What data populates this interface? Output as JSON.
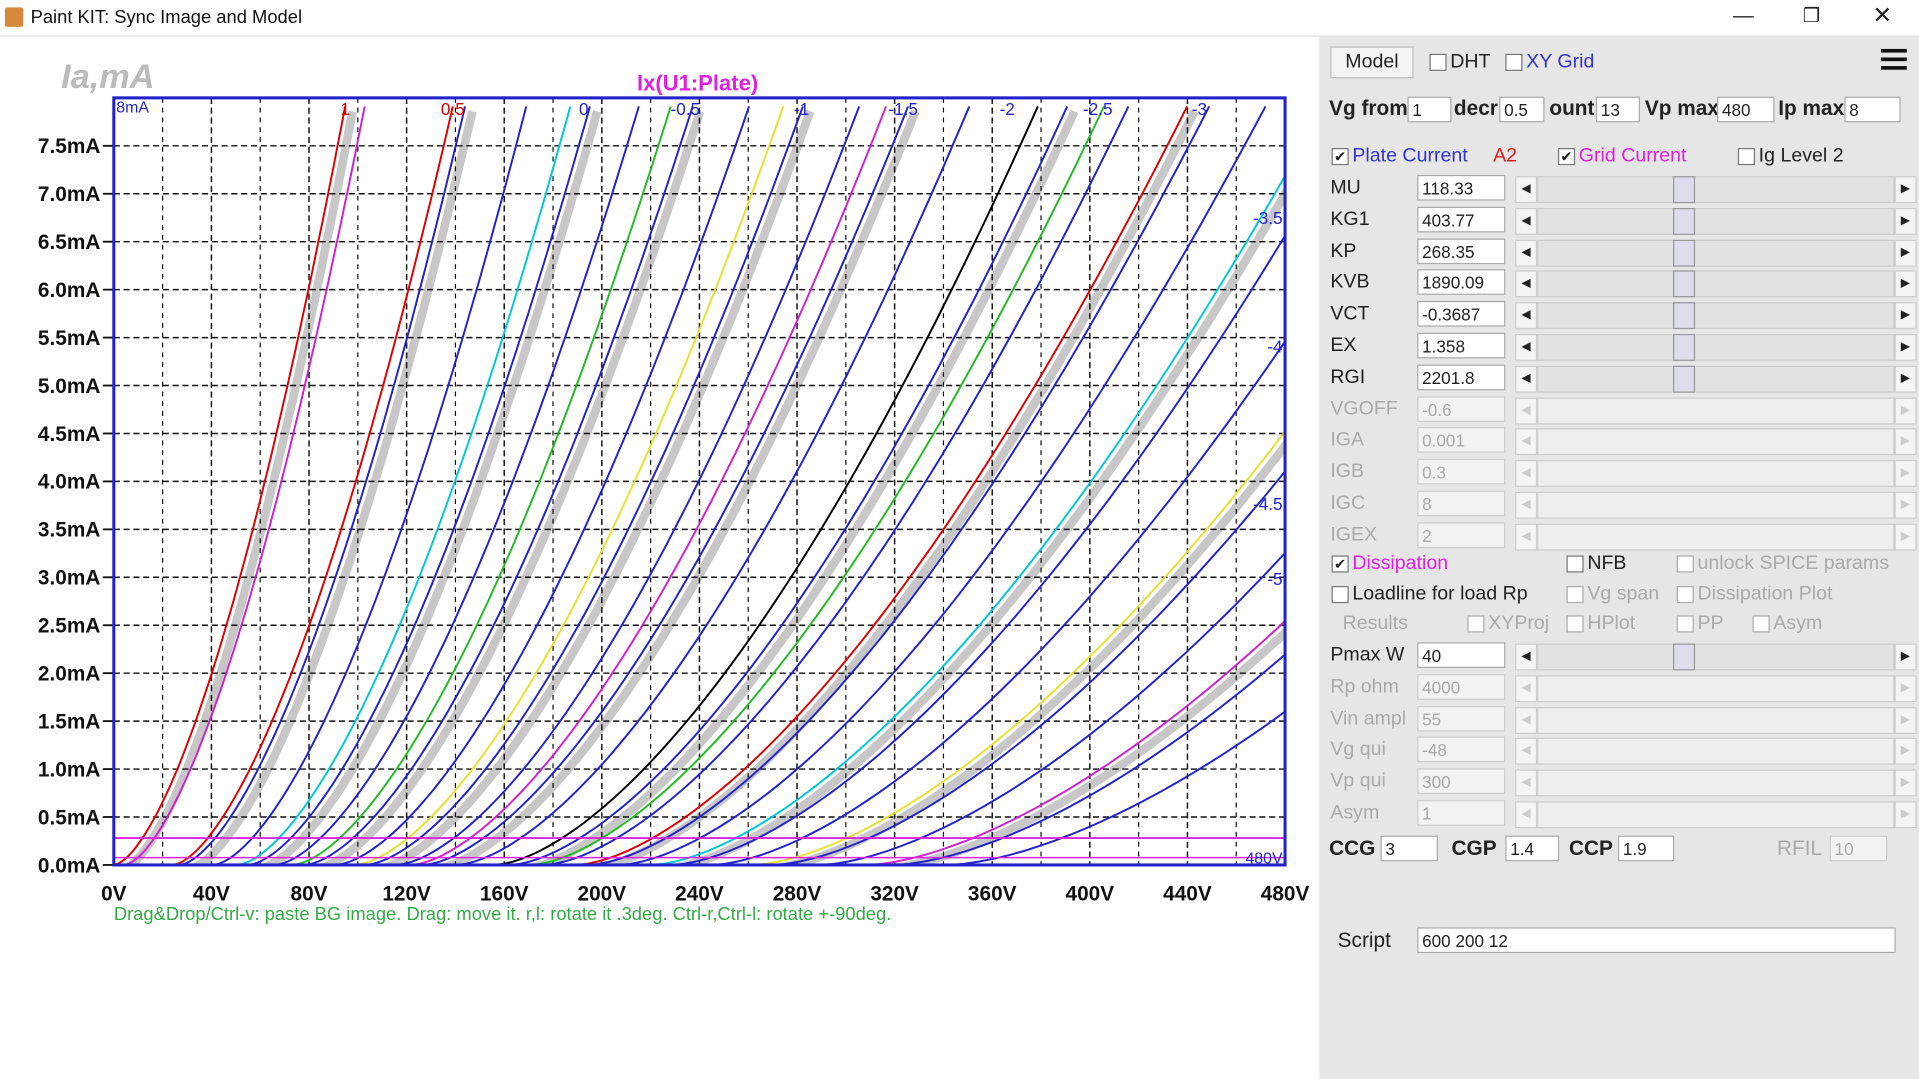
{
  "window": {
    "title": "Paint KIT: Sync Image and Model"
  },
  "plot": {
    "title": "Ix(U1:Plate)",
    "bg_label": "Ia,mA",
    "y_top_label": "8mA",
    "x_end_label": "480V",
    "yticks": [
      "0.0mA",
      "0.5mA",
      "1.0mA",
      "1.5mA",
      "2.0mA",
      "2.5mA",
      "3.0mA",
      "3.5mA",
      "4.0mA",
      "4.5mA",
      "5.0mA",
      "5.5mA",
      "6.0mA",
      "6.5mA",
      "7.0mA",
      "7.5mA"
    ],
    "xticks": [
      "0V",
      "40V",
      "80V",
      "120V",
      "160V",
      "200V",
      "240V",
      "280V",
      "320V",
      "360V",
      "400V",
      "440V",
      "480V"
    ],
    "curve_labels": [
      "1",
      "0.5",
      "0",
      "-0.5",
      "-1",
      "-1.5",
      "-2",
      "-2.5",
      "-3"
    ],
    "right_labels": [
      "-3.5",
      "-4",
      "-4.5",
      "-5"
    ],
    "status": "Drag&Drop/Ctrl-v: paste BG image. Drag: move it. r,l: rotate it .3deg. Ctrl-r,Ctrl-l: rotate +-90deg."
  },
  "panel": {
    "model_button": "Model",
    "top_checks": [
      {
        "label": "DHT",
        "checked": false
      },
      {
        "label": "XY Grid",
        "checked": false
      }
    ],
    "range_fields": [
      {
        "label": "Vg from",
        "value": 1
      },
      {
        "label": "decr",
        "value": 0.5
      },
      {
        "label": "ount",
        "value": 13
      },
      {
        "label": "Vp max",
        "value": 480
      },
      {
        "label": "Ip max",
        "value": 8
      }
    ],
    "curve_checks": [
      {
        "label": "Plate Current",
        "checked": true
      },
      {
        "label": "Grid Current",
        "checked": true
      },
      {
        "label": "Ig Level 2",
        "checked": false
      }
    ],
    "model_name": "A2",
    "params": [
      {
        "name": "MU",
        "value": 118.33,
        "enabled": true
      },
      {
        "name": "KG1",
        "value": 403.77,
        "enabled": true
      },
      {
        "name": "KP",
        "value": 268.35,
        "enabled": true
      },
      {
        "name": "KVB",
        "value": 1890.09,
        "enabled": true
      },
      {
        "name": "VCT",
        "value": -0.3687,
        "enabled": true
      },
      {
        "name": "EX",
        "value": 1.358,
        "enabled": true
      },
      {
        "name": "RGI",
        "value": 2201.8,
        "enabled": true
      },
      {
        "name": "VGOFF",
        "value": -0.6,
        "enabled": false
      },
      {
        "name": "IGA",
        "value": 0.001,
        "enabled": false
      },
      {
        "name": "IGB",
        "value": 0.3,
        "enabled": false
      },
      {
        "name": "IGC",
        "value": 8,
        "enabled": false
      },
      {
        "name": "IGEX",
        "value": 2,
        "enabled": false
      }
    ],
    "options": [
      {
        "label": "Dissipation",
        "checked": true,
        "enabled": true
      },
      {
        "label": "NFB",
        "checked": false,
        "enabled": true
      },
      {
        "label": "unlock SPICE params",
        "checked": false,
        "enabled": false
      },
      {
        "label": "Loadline for load Rp",
        "checked": false,
        "enabled": true
      },
      {
        "label": "Vg span",
        "checked": false,
        "enabled": false
      },
      {
        "label": "Dissipation Plot",
        "checked": false,
        "enabled": false
      },
      {
        "label": "XYProj",
        "checked": false,
        "enabled": false
      },
      {
        "label": "HPlot",
        "checked": false,
        "enabled": false
      },
      {
        "label": "PP",
        "checked": false,
        "enabled": false
      },
      {
        "label": "Asym",
        "checked": false,
        "enabled": false
      }
    ],
    "results_label": "Results",
    "load_params": [
      {
        "name": "Pmax W",
        "value": 40,
        "enabled": true
      },
      {
        "name": "Rp ohm",
        "value": 4000,
        "enabled": false
      },
      {
        "name": "Vin ampl",
        "value": 55,
        "enabled": false
      },
      {
        "name": "Vg qui",
        "value": -48,
        "enabled": false
      },
      {
        "name": "Vp qui",
        "value": 300,
        "enabled": false
      },
      {
        "name": "Asym",
        "value": 1,
        "enabled": false
      }
    ],
    "caps": [
      {
        "label": "CCG",
        "value": 3,
        "enabled": true
      },
      {
        "label": "CGP",
        "value": 1.4,
        "enabled": true
      },
      {
        "label": "CCP",
        "value": 1.9,
        "enabled": true
      },
      {
        "label": "RFIL",
        "value": 10,
        "enabled": false
      }
    ],
    "script": {
      "label": "Script",
      "value": "600 200 12"
    }
  }
}
